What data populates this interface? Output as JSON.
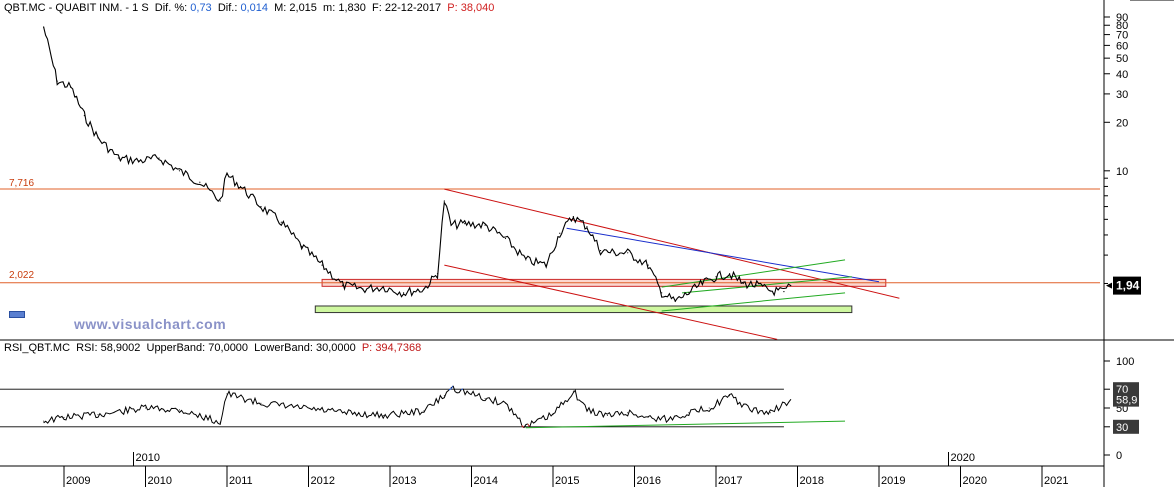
{
  "header": {
    "symbol": "QBT.MC",
    "name": "QUABIT INM.",
    "timeframe": "1 S",
    "dif_pct_label": "Dif. %:",
    "dif_pct": "0,73",
    "dif_label": "Dif.:",
    "dif": "0,014",
    "max_label": "M:",
    "max": "2,015",
    "min_label": "m:",
    "min": "1,830",
    "date_label": "F:",
    "date": "22-12-2017",
    "p_label": "P:",
    "p": "38,040"
  },
  "rsi_header": {
    "name": "RSI_QBT.MC",
    "rsi_label": "RSI:",
    "rsi": "58,9002",
    "upper_label": "UpperBand:",
    "upper": "70,0000",
    "lower_label": "LowerBand:",
    "lower": "30,0000",
    "p_label": "P:",
    "p": "394,7368"
  },
  "watermark": "www.visualchart.com",
  "levels": {
    "upper": "7,716",
    "lower": "2,022"
  },
  "last_price_tag": "1,94",
  "rsi_tags": {
    "upper": "70",
    "value": "58,9",
    "lower": "30"
  },
  "colors": {
    "price": "#000000",
    "level_line": "#e0602a",
    "trend_red": "#cc1111",
    "trend_blue": "#1a2ecc",
    "trend_green": "#22aa22",
    "zone_red_fill": "#fbd7cf",
    "zone_green_fill": "#cef7a0",
    "rsi_up": "#2255cc",
    "rsi_down": "#cc2222"
  },
  "chart_data": [
    {
      "type": "line",
      "title": "QBT.MC QUABIT INM. 1 S",
      "scale": "log",
      "y_ticks": [
        90,
        80,
        70,
        60,
        50,
        40,
        30,
        20,
        10
      ],
      "x": [
        "2008-10",
        "2008-12",
        "2009-02",
        "2009-04",
        "2009-06",
        "2009-09",
        "2009-12",
        "2010-03",
        "2010-06",
        "2010-09",
        "2010-12",
        "2011-01",
        "2011-03",
        "2011-06",
        "2011-09",
        "2011-12",
        "2012-03",
        "2012-06",
        "2012-09",
        "2012-12",
        "2013-03",
        "2013-06",
        "2013-08",
        "2013-09",
        "2013-10",
        "2013-12",
        "2014-03",
        "2014-06",
        "2014-09",
        "2014-12",
        "2015-02",
        "2015-04",
        "2015-06",
        "2015-08",
        "2015-10",
        "2015-12",
        "2016-03",
        "2016-05",
        "2016-07",
        "2016-09",
        "2016-11",
        "2017-01",
        "2017-03",
        "2017-05",
        "2017-07",
        "2017-09",
        "2017-11",
        "2017-12"
      ],
      "y": [
        78,
        36,
        33,
        22,
        16,
        12,
        11.5,
        12,
        10,
        8.5,
        6.5,
        9.5,
        8.0,
        6.0,
        4.8,
        3.4,
        2.6,
        1.95,
        1.85,
        1.9,
        1.75,
        1.85,
        2.3,
        6.5,
        4.6,
        4.7,
        4.6,
        3.8,
        2.8,
        2.6,
        4.1,
        5.2,
        4.5,
        3.2,
        3.1,
        3.1,
        2.6,
        1.75,
        1.55,
        1.75,
        2.0,
        2.2,
        2.3,
        2.0,
        1.95,
        1.8,
        1.78,
        1.94
      ],
      "levels": [
        7.716,
        2.022
      ],
      "last": 1.94,
      "xlabel": "",
      "ylabel": ""
    },
    {
      "type": "line",
      "title": "RSI_QBT.MC",
      "y_ticks": [
        100,
        70,
        50,
        30,
        0
      ],
      "ylim": [
        0,
        100
      ],
      "bands": [
        70,
        30
      ],
      "x": [
        "2008-10",
        "2009-01",
        "2009-06",
        "2010-01",
        "2010-06",
        "2010-12",
        "2011-01",
        "2011-06",
        "2011-12",
        "2012-06",
        "2012-12",
        "2013-06",
        "2013-09",
        "2013-10",
        "2014-03",
        "2014-06",
        "2014-09",
        "2015-01",
        "2015-04",
        "2015-06",
        "2015-09",
        "2015-12",
        "2016-03",
        "2016-06",
        "2016-09",
        "2016-12",
        "2017-03",
        "2017-06",
        "2017-09",
        "2017-12"
      ],
      "y": [
        36,
        40,
        43,
        50,
        48,
        35,
        65,
        55,
        50,
        45,
        42,
        47,
        63,
        72,
        60,
        55,
        30,
        43,
        68,
        48,
        42,
        45,
        40,
        38,
        45,
        50,
        63,
        48,
        45,
        58.9
      ],
      "last": 58.9
    }
  ],
  "x_axis": {
    "years": [
      "2009",
      "2010",
      "2011",
      "2012",
      "2013",
      "2014",
      "2015",
      "2016",
      "2017",
      "2018",
      "2019",
      "2020",
      "2021"
    ],
    "markers": [
      "2010",
      "2020"
    ]
  }
}
